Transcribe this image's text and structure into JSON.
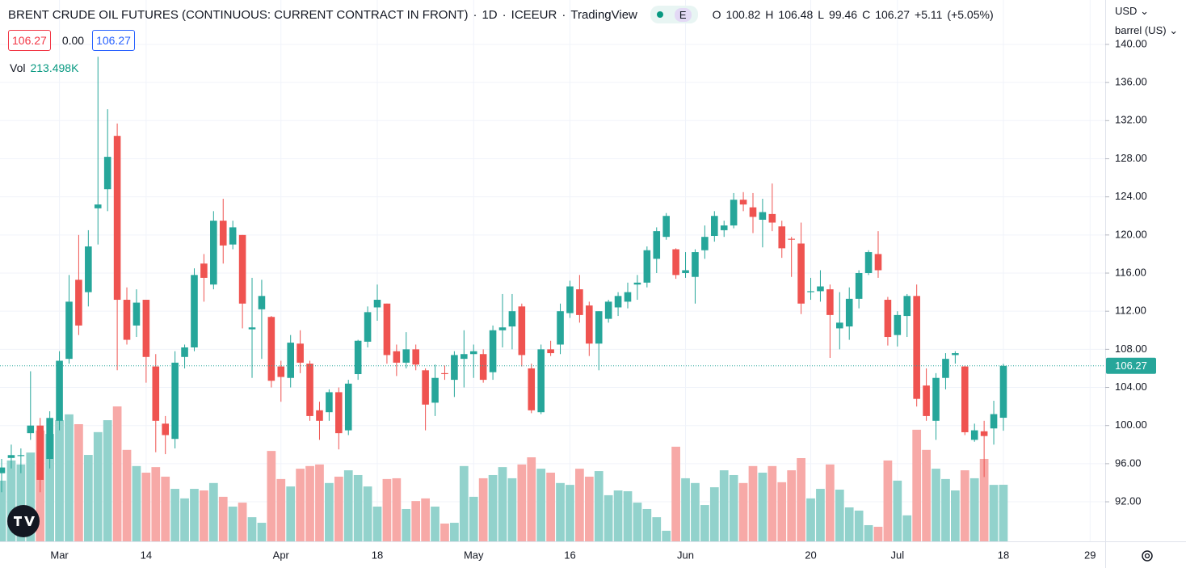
{
  "chart_data": {
    "type": "candlestick",
    "title": "BRENT CRUDE OIL FUTURES (CONTINUOUS: CURRENT CONTRACT IN FRONT)",
    "separator": "·",
    "interval": "1D",
    "exchange": "ICEEUR",
    "source": "TradingView",
    "badge": "E",
    "ohlc_keys": [
      "O",
      "H",
      "L",
      "C"
    ],
    "change_label": "+5.11",
    "change_pct_label": "(+5.05%)",
    "quote": {
      "bid": 106.27,
      "spread": {
        "value": 0,
        "label": "0.00"
      },
      "ask": 106.27
    },
    "volume_name": "Vol",
    "volume_value_label": "213.498K",
    "currency": "USD",
    "unit": "barrel (US)",
    "up_color": "#26a69a",
    "down_color": "#ef5350",
    "up_volume_color": "#92d2cc",
    "down_volume_color": "#f7a9a7",
    "grid": true,
    "ylim": [
      87.85,
      144.66
    ],
    "yticks": [
      {
        "value": 92,
        "label": "92.00"
      },
      {
        "value": 96,
        "label": "96.00"
      },
      {
        "value": 100,
        "label": "100.00"
      },
      {
        "value": 104,
        "label": "104.00"
      },
      {
        "value": 108,
        "label": "108.00"
      },
      {
        "value": 112,
        "label": "112.00"
      },
      {
        "value": 116,
        "label": "116.00"
      },
      {
        "value": 120,
        "label": "120.00"
      },
      {
        "value": 124,
        "label": "124.00"
      },
      {
        "value": 128,
        "label": "128.00"
      },
      {
        "value": 132,
        "label": "132.00"
      },
      {
        "value": 136,
        "label": "136.00"
      },
      {
        "value": 140,
        "label": "140.00"
      }
    ],
    "xlim": [
      -0.17,
      114.57
    ],
    "xticks": [
      {
        "value": 6,
        "label": "Mar"
      },
      {
        "value": 15,
        "label": "14"
      },
      {
        "value": 29,
        "label": "Apr"
      },
      {
        "value": 39,
        "label": "18"
      },
      {
        "value": 49,
        "label": "May"
      },
      {
        "value": 59,
        "label": "16"
      },
      {
        "value": 71,
        "label": "Jun"
      },
      {
        "value": 84,
        "label": "20"
      },
      {
        "value": 93,
        "label": "Jul"
      },
      {
        "value": 104,
        "label": "18"
      },
      {
        "value": 113,
        "label": "29"
      }
    ],
    "open": [
      95.0,
      96.6,
      96.8,
      99.2,
      100.0,
      96.5,
      100.5,
      107.0,
      115.3,
      114.0,
      122.8,
      124.8,
      130.4,
      113.2,
      110.5,
      113.2,
      106.2,
      100.2,
      98.6,
      107.2,
      108.2,
      117.0,
      114.8,
      121.5,
      119.0,
      120.0,
      110.1,
      112.2,
      111.4,
      106.2,
      105.0,
      108.6,
      106.5,
      101.6,
      101.4,
      103.5,
      99.5,
      105.4,
      108.8,
      112.4,
      112.8,
      107.8,
      106.6,
      108.0,
      105.8,
      102.4,
      105.5,
      104.8,
      107.0,
      107.5,
      107.5,
      105.6,
      110.0,
      110.4,
      112.5,
      106.0,
      101.4,
      108.0,
      108.5,
      111.8,
      114.3,
      112.6,
      108.6,
      111.2,
      112.4,
      113.0,
      114.8,
      115.0,
      117.5,
      119.8,
      118.5,
      116.0,
      115.6,
      118.4,
      119.9,
      120.5,
      121.0,
      123.7,
      122.9,
      121.6,
      122.2,
      120.9,
      119.6,
      119.1,
      114.0,
      114.1,
      114.3,
      110.2,
      110.4,
      113.3,
      116.0,
      118.0,
      113.2,
      109.5,
      111.5,
      113.6,
      104.2,
      100.5,
      105.0,
      107.4,
      106.2,
      98.5,
      99.4,
      99.7,
      100.82
    ],
    "high": [
      96.5,
      98.0,
      97.6,
      105.7,
      100.8,
      101.5,
      107.8,
      115.8,
      120.0,
      120.5,
      138.7,
      133.2,
      131.7,
      114.5,
      114.3,
      113.2,
      107.5,
      101.0,
      107.8,
      108.5,
      116.5,
      118.0,
      122.5,
      123.8,
      121.5,
      120.0,
      115.5,
      115.3,
      111.5,
      106.8,
      109.5,
      110.0,
      106.8,
      102.5,
      103.8,
      104.0,
      104.8,
      109.0,
      112.5,
      114.8,
      112.8,
      108.5,
      109.8,
      108.5,
      106.0,
      106.4,
      106.3,
      107.8,
      110.0,
      108.5,
      108.0,
      110.5,
      113.8,
      113.8,
      112.8,
      106.5,
      108.5,
      108.9,
      112.8,
      115.2,
      115.8,
      113.0,
      112.0,
      113.2,
      114.0,
      115.0,
      115.8,
      118.8,
      120.8,
      122.3,
      118.6,
      118.2,
      118.5,
      121.0,
      122.5,
      121.5,
      124.4,
      124.5,
      124.4,
      123.8,
      125.4,
      121.5,
      119.8,
      121.3,
      115.5,
      116.3,
      114.8,
      114.0,
      114.5,
      116.3,
      118.4,
      120.4,
      113.5,
      112.0,
      113.8,
      114.8,
      106.0,
      105.5,
      107.6,
      107.8,
      106.3,
      100.2,
      100.5,
      102.6,
      106.48
    ],
    "low": [
      93.0,
      95.5,
      95.0,
      98.5,
      93.0,
      95.5,
      99.5,
      106.5,
      109.5,
      112.5,
      119.0,
      122.5,
      105.8,
      108.5,
      109.3,
      104.5,
      97.2,
      97.0,
      97.6,
      106.0,
      107.8,
      113.0,
      114.3,
      117.0,
      118.5,
      110.2,
      105.0,
      107.0,
      104.0,
      102.5,
      104.0,
      105.5,
      100.5,
      98.5,
      100.5,
      97.5,
      99.0,
      104.8,
      108.2,
      111.0,
      106.5,
      105.2,
      106.0,
      105.8,
      99.5,
      101.0,
      104.8,
      103.0,
      104.0,
      105.0,
      104.5,
      104.8,
      108.2,
      108.0,
      106.2,
      101.3,
      101.2,
      107.3,
      107.5,
      111.3,
      110.8,
      107.3,
      105.8,
      110.8,
      111.5,
      112.3,
      113.2,
      114.5,
      116.0,
      119.5,
      115.4,
      115.5,
      112.8,
      117.5,
      119.3,
      119.8,
      120.7,
      122.5,
      120.2,
      118.7,
      120.4,
      117.6,
      115.6,
      111.7,
      113.2,
      113.0,
      107.1,
      108.0,
      109.0,
      112.3,
      115.8,
      115.5,
      108.4,
      108.3,
      109.3,
      102.0,
      100.5,
      98.5,
      103.8,
      106.5,
      99.0,
      98.3,
      94.6,
      98.0,
      99.46
    ],
    "close": [
      95.6,
      96.9,
      96.9,
      100.0,
      94.3,
      100.8,
      106.8,
      113.0,
      110.5,
      118.8,
      123.2,
      128.2,
      113.2,
      109.0,
      112.9,
      107.2,
      100.5,
      99.0,
      106.6,
      108.2,
      115.8,
      115.5,
      121.5,
      118.9,
      120.8,
      112.8,
      110.3,
      113.6,
      104.7,
      105.1,
      108.7,
      106.6,
      101.0,
      100.5,
      103.5,
      99.2,
      104.4,
      108.9,
      111.9,
      113.2,
      107.4,
      106.6,
      108.0,
      106.4,
      102.2,
      105.0,
      105.4,
      107.4,
      107.5,
      107.8,
      104.8,
      110.0,
      110.3,
      112.0,
      107.4,
      101.6,
      108.0,
      107.6,
      112.0,
      114.6,
      111.6,
      108.6,
      112.0,
      113.0,
      113.6,
      114.0,
      115.0,
      118.4,
      120.4,
      122.0,
      115.8,
      116.3,
      118.2,
      119.8,
      122.0,
      121.0,
      123.7,
      123.2,
      121.9,
      122.4,
      121.3,
      118.6,
      119.5,
      112.8,
      114.1,
      114.6,
      111.6,
      110.8,
      113.3,
      116.0,
      118.2,
      116.3,
      109.3,
      111.6,
      113.6,
      102.8,
      101.0,
      105.0,
      107.0,
      107.6,
      99.3,
      99.5,
      98.9,
      101.2,
      106.27
    ],
    "volume": [
      229,
      305,
      290,
      335,
      418,
      405,
      457,
      479,
      442,
      326,
      412,
      457,
      509,
      345,
      284,
      259,
      280,
      244,
      198,
      162,
      198,
      192,
      220,
      168,
      131,
      146,
      91,
      70,
      341,
      235,
      207,
      274,
      284,
      290,
      220,
      244,
      268,
      250,
      207,
      131,
      235,
      238,
      122,
      152,
      162,
      131,
      67,
      70,
      284,
      168,
      238,
      250,
      280,
      238,
      290,
      317,
      274,
      259,
      220,
      213,
      274,
      244,
      265,
      174,
      192,
      189,
      146,
      122,
      91,
      40,
      357,
      238,
      220,
      137,
      204,
      268,
      250,
      220,
      284,
      259,
      284,
      223,
      268,
      314,
      162,
      198,
      290,
      195,
      128,
      116,
      61,
      55,
      305,
      229,
      98,
      421,
      345,
      274,
      235,
      192,
      268,
      238,
      311,
      213,
      213.498
    ]
  }
}
